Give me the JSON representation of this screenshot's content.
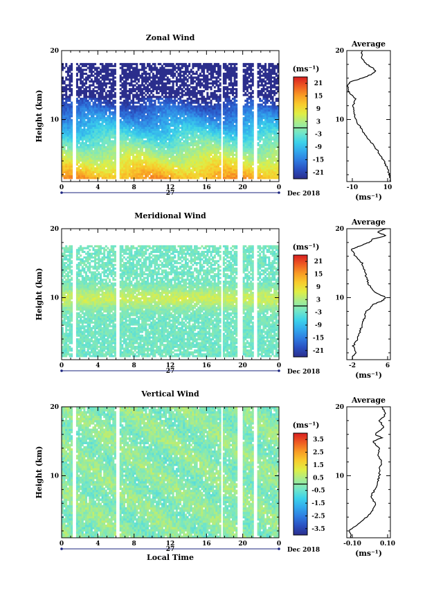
{
  "colors": {
    "colormap": [
      "#2b2e8c",
      "#2a4fc0",
      "#2f7be0",
      "#32a8ec",
      "#3cd2ea",
      "#73e6c8",
      "#a8ec8c",
      "#e0ee44",
      "#f8cc2c",
      "#f89a24",
      "#ee5a22",
      "#d81e20"
    ],
    "time_axis_marker": "#1a237e",
    "zero_contour": "#000000"
  },
  "chart_data": [
    {
      "type": "heatmap",
      "title": "Zonal Wind",
      "ylabel": "Height (km)",
      "ylim": [
        1,
        20
      ],
      "yticks": [
        "10",
        "20"
      ],
      "xlim": [
        0,
        24
      ],
      "xticks": [
        "0",
        "4",
        "8",
        "12",
        "16",
        "20",
        "0"
      ],
      "date_day": "27",
      "date_month": "Dec 2018",
      "colorbar": {
        "unit": "(ms⁻¹)",
        "range": [
          -24,
          24
        ],
        "ticks": [
          "21",
          "15",
          "9",
          "3",
          "-3",
          "-9",
          "-15",
          "-21"
        ]
      },
      "profile": {
        "title": "Average",
        "xlabel": "(ms⁻¹)",
        "xlim": [
          -10,
          10
        ],
        "xticks": [
          "-10",
          "10"
        ],
        "yticks": [
          "10",
          "20"
        ],
        "points": [
          [
            10,
            1
          ],
          [
            9.5,
            2
          ],
          [
            8.5,
            3
          ],
          [
            7,
            4
          ],
          [
            5,
            5
          ],
          [
            3,
            6
          ],
          [
            0.5,
            7
          ],
          [
            -2,
            8
          ],
          [
            -4,
            9
          ],
          [
            -6,
            10
          ],
          [
            -6.5,
            11
          ],
          [
            -7,
            12
          ],
          [
            -6,
            13
          ],
          [
            -9,
            14
          ],
          [
            -9.5,
            15
          ],
          [
            -8,
            15.5
          ],
          [
            -3,
            16
          ],
          [
            1,
            16.5
          ],
          [
            3,
            17
          ],
          [
            2,
            17.5
          ],
          [
            -1,
            18
          ],
          [
            -3,
            19
          ],
          [
            -3,
            20
          ]
        ]
      }
    },
    {
      "type": "heatmap",
      "title": "Meridional Wind",
      "ylabel": "Height (km)",
      "ylim": [
        1,
        20
      ],
      "yticks": [
        "10",
        "20"
      ],
      "xlim": [
        0,
        24
      ],
      "xticks": [
        "0",
        "4",
        "8",
        "12",
        "16",
        "20",
        "0"
      ],
      "date_day": "27",
      "date_month": "Dec 2018",
      "colorbar": {
        "unit": "(ms⁻¹)",
        "range": [
          -24,
          24
        ],
        "ticks": [
          "21",
          "15",
          "9",
          "3",
          "-3",
          "-9",
          "-15",
          "-21"
        ]
      },
      "profile": {
        "title": "Average",
        "xlabel": "(ms⁻¹)",
        "xlim": [
          -3,
          7
        ],
        "xticks": [
          "-2",
          "6"
        ],
        "yticks": [
          "10",
          "20"
        ],
        "points": [
          [
            -2,
            1
          ],
          [
            -1,
            2
          ],
          [
            -1.5,
            3
          ],
          [
            -0.5,
            4
          ],
          [
            0,
            5
          ],
          [
            0.5,
            6
          ],
          [
            1,
            7
          ],
          [
            1.5,
            8
          ],
          [
            3,
            9
          ],
          [
            5,
            9.5
          ],
          [
            6,
            10
          ],
          [
            3,
            11
          ],
          [
            2,
            12
          ],
          [
            1.5,
            13
          ],
          [
            1,
            14
          ],
          [
            0.5,
            15
          ],
          [
            -1,
            16
          ],
          [
            -2,
            17
          ],
          [
            0,
            17.5
          ],
          [
            2,
            18
          ],
          [
            3,
            18.5
          ],
          [
            6,
            19
          ],
          [
            4,
            19.5
          ],
          [
            6,
            20
          ]
        ]
      }
    },
    {
      "type": "heatmap",
      "title": "Vertical Wind",
      "ylabel": "Height (km)",
      "xlabel": "Local Time",
      "ylim": [
        1,
        20
      ],
      "yticks": [
        "10",
        "20"
      ],
      "xlim": [
        0,
        24
      ],
      "xticks": [
        "0",
        "4",
        "8",
        "12",
        "16",
        "20",
        "0"
      ],
      "date_day": "27",
      "date_month": "Dec 2018",
      "colorbar": {
        "unit": "(ms⁻¹)",
        "range": [
          -4,
          4
        ],
        "ticks": [
          "3.5",
          "2.5",
          "1.5",
          "0.5",
          "-0.5",
          "-1.5",
          "-2.5",
          "-3.5"
        ]
      },
      "profile": {
        "title": "Average",
        "xlabel": "(ms⁻¹)",
        "xlim": [
          -0.1,
          0.1
        ],
        "xticks": [
          "-0.10",
          "0.10"
        ],
        "yticks": [
          "10",
          "20"
        ],
        "points": [
          [
            -0.08,
            1
          ],
          [
            -0.09,
            2
          ],
          [
            -0.05,
            3
          ],
          [
            -0.01,
            4
          ],
          [
            0.02,
            5
          ],
          [
            0.03,
            6
          ],
          [
            0.01,
            7
          ],
          [
            0.03,
            8
          ],
          [
            0.04,
            9
          ],
          [
            0.05,
            10
          ],
          [
            0.05,
            11
          ],
          [
            0.06,
            12
          ],
          [
            0.04,
            13
          ],
          [
            0.05,
            14
          ],
          [
            0.02,
            15
          ],
          [
            0.06,
            15.5
          ],
          [
            0.03,
            16
          ],
          [
            0.07,
            17
          ],
          [
            0.05,
            18
          ],
          [
            0.08,
            19
          ],
          [
            0.06,
            20
          ]
        ]
      }
    }
  ]
}
